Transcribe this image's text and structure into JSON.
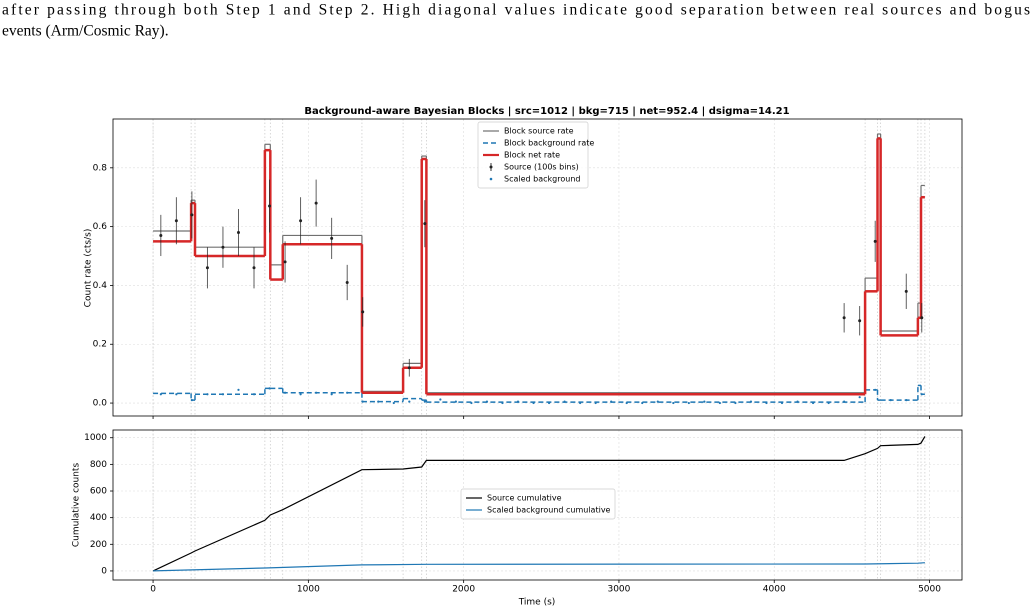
{
  "caption": [
    "after passing through both Step 1 and Step 2. High diagonal values indicate good separation between real sources and bogus",
    "events (Arm/Cosmic Ray)."
  ],
  "chart_data": [
    {
      "type": "step",
      "title": "Background-aware Bayesian Blocks | src=1012 | bkg=715 | net=952.4 | dsigma=14.21",
      "y_label": "Count rate (cts/s)",
      "xlim": [
        -258,
        5209
      ],
      "xticks": [
        0,
        1000,
        2000,
        3000,
        4000,
        5000
      ],
      "ylim": [
        -0.044,
        0.966
      ],
      "yticks": [
        {
          "value": 0,
          "label": "0.0"
        },
        0.2,
        0.4,
        0.6,
        0.8
      ],
      "grid": true,
      "legend": "upper center",
      "edges": [
        0,
        245,
        270,
        720,
        755,
        835,
        1345,
        1610,
        1730,
        1760,
        4585,
        4665,
        4685,
        4925,
        4945,
        4970
      ],
      "series": [
        {
          "name": "Block source rate",
          "color": "#707070",
          "style": "step",
          "line": "solid",
          "width": 1.2,
          "values": [
            0.585,
            0.69,
            0.53,
            0.88,
            0.47,
            0.57,
            0.04,
            0.135,
            0.84,
            0.035,
            0.425,
            0.915,
            0.245,
            0.34,
            0.74
          ]
        },
        {
          "name": "Block background rate",
          "color": "#1f77b4",
          "style": "step",
          "line": "dashed",
          "width": 1.5,
          "values": [
            0.033,
            0.01,
            0.03,
            0.05,
            0.05,
            0.035,
            0.005,
            0.015,
            0.01,
            0.003,
            0.045,
            0.01,
            0.01,
            0.06,
            0.03
          ]
        },
        {
          "name": "Block net rate",
          "color": "#d62728",
          "style": "step",
          "line": "solid",
          "width": 2.5,
          "values": [
            0.55,
            0.68,
            0.5,
            0.86,
            0.42,
            0.54,
            0.035,
            0.12,
            0.83,
            0.03,
            0.38,
            0.9,
            0.23,
            0.29,
            0.7
          ]
        },
        {
          "name": "Source (100s bins)",
          "color": "#222222",
          "style": "errorbar",
          "x": [
            50,
            150,
            250,
            350,
            450,
            550,
            650,
            750,
            850,
            950,
            1050,
            1150,
            1250,
            1350,
            1650,
            1750,
            4450,
            4550,
            4650,
            4850,
            4950
          ],
          "values": [
            0.57,
            0.62,
            0.64,
            0.46,
            0.53,
            0.58,
            0.46,
            0.67,
            0.48,
            0.62,
            0.68,
            0.56,
            0.41,
            0.31,
            0.12,
            0.61,
            0.29,
            0.28,
            0.55,
            0.38,
            0.29
          ],
          "errors": [
            0.07,
            0.08,
            0.08,
            0.07,
            0.07,
            0.08,
            0.07,
            0.09,
            0.07,
            0.08,
            0.08,
            0.07,
            0.06,
            0.05,
            0.03,
            0.08,
            0.05,
            0.05,
            0.07,
            0.06,
            0.05
          ]
        },
        {
          "name": "Scaled background",
          "color": "#1f77b4",
          "style": "points",
          "x": [
            50,
            150,
            250,
            350,
            450,
            550,
            650,
            750,
            850,
            950,
            1050,
            1150,
            1250,
            1350,
            1450,
            1550,
            1650,
            1750,
            1850,
            1950,
            2050,
            2150,
            2250,
            2350,
            2450,
            2550,
            2650,
            2750,
            2850,
            2950,
            3050,
            3150,
            3250,
            3350,
            3450,
            3550,
            3650,
            3750,
            3850,
            3950,
            4050,
            4150,
            4250,
            4350,
            4450,
            4550,
            4650,
            4750,
            4850,
            4950
          ],
          "values": [
            0.03,
            0.03,
            0.01,
            0.03,
            0.03,
            0.045,
            0.03,
            0.05,
            0.035,
            0.03,
            0.035,
            0.03,
            0.035,
            0.005,
            0.005,
            0.0,
            0.005,
            0.005,
            0.012,
            0.005,
            0.0,
            0.005,
            0.0,
            0.005,
            0.0,
            0.0,
            0.005,
            0.0,
            0.0,
            0.005,
            0.0,
            0.0,
            0.005,
            0.0,
            0.0,
            0.005,
            0.0,
            0.0,
            0.005,
            0.0,
            0.0,
            0.005,
            0.0,
            0.0,
            0.005,
            0.02,
            0.045,
            0.01,
            0.01,
            0.03
          ]
        }
      ]
    },
    {
      "type": "line",
      "x_label": "Time (s)",
      "y_label": "Cumulative counts",
      "xlim": [
        -258,
        5209
      ],
      "xticks": [
        0,
        1000,
        2000,
        3000,
        4000,
        5000
      ],
      "ylim": [
        -68,
        1058
      ],
      "yticks": [
        0,
        200,
        400,
        600,
        800,
        1000
      ],
      "grid": true,
      "legend": "center",
      "series": [
        {
          "name": "Source cumulative",
          "color": "#000000",
          "x": [
            0,
            245,
            270,
            720,
            755,
            835,
            1345,
            1610,
            1730,
            1760,
            4450,
            4585,
            4665,
            4685,
            4925,
            4945,
            4970
          ],
          "values": [
            0,
            135,
            150,
            380,
            420,
            460,
            760,
            765,
            780,
            830,
            830,
            880,
            920,
            940,
            950,
            960,
            1010
          ]
        },
        {
          "name": "Scaled background cumulative",
          "color": "#1f77b4",
          "x": [
            0,
            720,
            1345,
            1760,
            4585,
            4925,
            4970
          ],
          "values": [
            0,
            22,
            45,
            50,
            52,
            58,
            62
          ]
        }
      ]
    }
  ]
}
